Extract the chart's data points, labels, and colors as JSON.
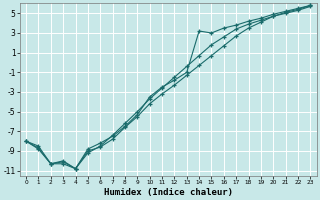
{
  "xlabel": "Humidex (Indice chaleur)",
  "background_color": "#c8e8e8",
  "grid_color": "#ffffff",
  "line_color": "#1a6b6b",
  "xlim": [
    0,
    23
  ],
  "ylim": [
    -11.5,
    6.0
  ],
  "xticks": [
    0,
    1,
    2,
    3,
    4,
    5,
    6,
    7,
    8,
    9,
    10,
    11,
    12,
    13,
    14,
    15,
    16,
    17,
    18,
    19,
    20,
    21,
    22,
    23
  ],
  "yticks": [
    -11,
    -9,
    -7,
    -5,
    -3,
    -1,
    1,
    3,
    5
  ],
  "line1_x": [
    0,
    1,
    2,
    3,
    4,
    5,
    6,
    7,
    8,
    9,
    10,
    11,
    12,
    13,
    14,
    15,
    16,
    17,
    18,
    19,
    20,
    21,
    22,
    23
  ],
  "line1_y": [
    -8.0,
    -8.8,
    -10.3,
    -10.3,
    -10.8,
    -9.0,
    -8.6,
    -7.8,
    -6.6,
    -5.5,
    -4.2,
    -3.2,
    -2.3,
    -1.3,
    -0.3,
    0.7,
    1.7,
    2.7,
    3.5,
    4.1,
    4.7,
    5.1,
    5.4,
    5.8
  ],
  "line2_x": [
    0,
    1,
    2,
    3,
    4,
    5,
    6,
    7,
    8,
    9,
    10,
    11,
    12,
    13,
    14,
    15,
    16,
    17,
    18,
    19,
    20,
    21,
    22,
    23
  ],
  "line2_y": [
    -8.0,
    -8.5,
    -10.3,
    -10.1,
    -10.8,
    -9.2,
    -8.5,
    -7.4,
    -6.2,
    -5.0,
    -3.7,
    -2.6,
    -1.5,
    -0.4,
    0.7,
    1.8,
    2.6,
    3.4,
    3.9,
    4.3,
    4.7,
    5.0,
    5.3,
    5.7
  ],
  "line3_x": [
    0,
    1,
    2,
    3,
    4,
    5,
    6,
    7,
    8,
    9,
    10,
    11,
    12,
    13,
    14,
    15,
    16,
    17,
    18,
    19,
    20,
    21,
    22,
    23
  ],
  "line3_y": [
    -8.0,
    -8.7,
    -10.3,
    -10.0,
    -10.8,
    -8.8,
    -8.2,
    -7.5,
    -6.5,
    -5.3,
    -3.5,
    -2.5,
    -1.8,
    -1.0,
    3.2,
    3.0,
    3.5,
    3.8,
    4.2,
    4.5,
    4.9,
    5.2,
    5.5,
    5.8
  ]
}
